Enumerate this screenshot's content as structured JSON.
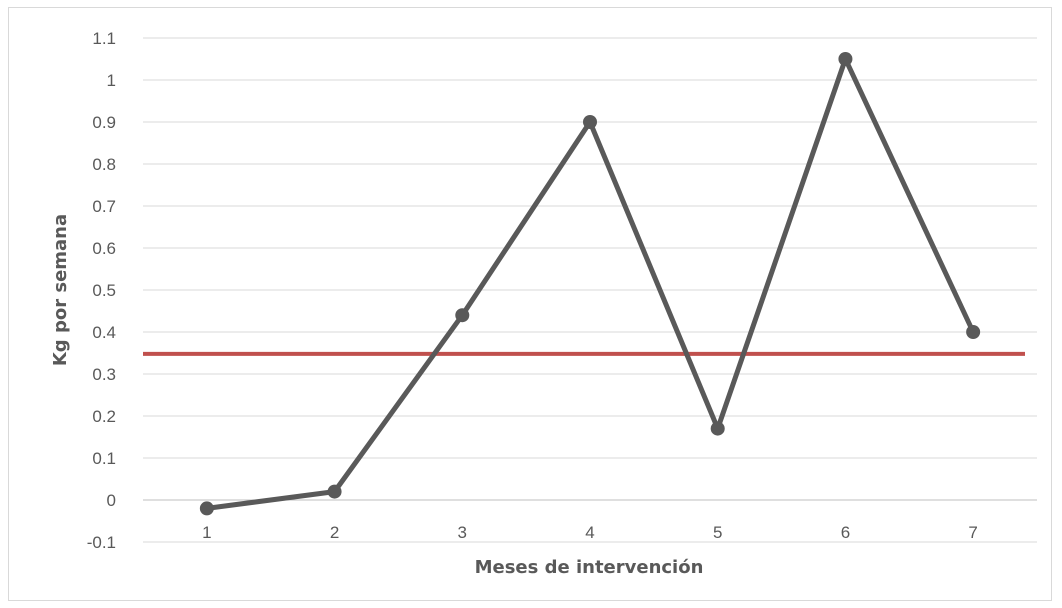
{
  "chart_data": {
    "type": "line",
    "title": "",
    "xlabel": "Meses de intervención",
    "ylabel": "Kg por semana",
    "categories": [
      "1",
      "2",
      "3",
      "4",
      "5",
      "6",
      "7"
    ],
    "series": [
      {
        "values": [
          -0.02,
          0.02,
          0.44,
          0.9,
          0.17,
          1.05,
          0.4
        ],
        "color": "#595959"
      }
    ],
    "reference_line": {
      "value": 0.348,
      "color": "#c0504d"
    },
    "ylim": [
      -0.1,
      1.1
    ],
    "yticks": [
      "-0.1",
      "0",
      "0.1",
      "0.2",
      "0.3",
      "0.4",
      "0.5",
      "0.6",
      "0.7",
      "0.8",
      "0.9",
      "1",
      "1.1"
    ],
    "grid": true,
    "legend": "none"
  }
}
